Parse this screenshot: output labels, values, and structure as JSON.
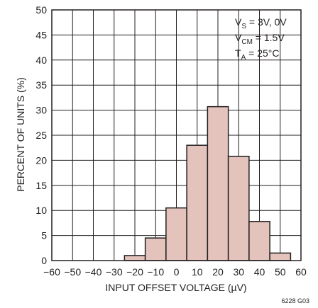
{
  "chart_data": {
    "type": "bar",
    "title": "",
    "xlabel": "INPUT OFFSET VOLTAGE (µV)",
    "ylabel": "PERCENT OF UNITS (%)",
    "xlim": [
      -60,
      60
    ],
    "ylim": [
      0,
      50
    ],
    "bin_width": 10,
    "x_ticks": [
      "−60",
      "−50",
      "−40",
      "−30",
      "−20",
      "−10",
      "0",
      "10",
      "20",
      "30",
      "40",
      "50",
      "60"
    ],
    "y_ticks": [
      "0",
      "5",
      "10",
      "15",
      "20",
      "25",
      "30",
      "35",
      "40",
      "45",
      "50"
    ],
    "grid": true,
    "bar_color": "#e4c3bd",
    "bar_edge_color": "#231f20",
    "bins": [
      {
        "center": -20,
        "value": 1.0
      },
      {
        "center": -10,
        "value": 4.5
      },
      {
        "center": 0,
        "value": 10.5
      },
      {
        "center": 10,
        "value": 23.0
      },
      {
        "center": 20,
        "value": 30.7
      },
      {
        "center": 30,
        "value": 20.8
      },
      {
        "center": 40,
        "value": 7.8
      },
      {
        "center": 50,
        "value": 1.5
      }
    ],
    "annotations": {
      "line1_main": "V",
      "line1_sub": "S",
      "line1_rest": " = 3V, 0V",
      "line2_main": "V",
      "line2_sub": "CM",
      "line2_rest": " = 1.5V",
      "line3_main": "T",
      "line3_sub": "A",
      "line3_rest": " = 25°C"
    },
    "figure_id": "6228 G03"
  }
}
